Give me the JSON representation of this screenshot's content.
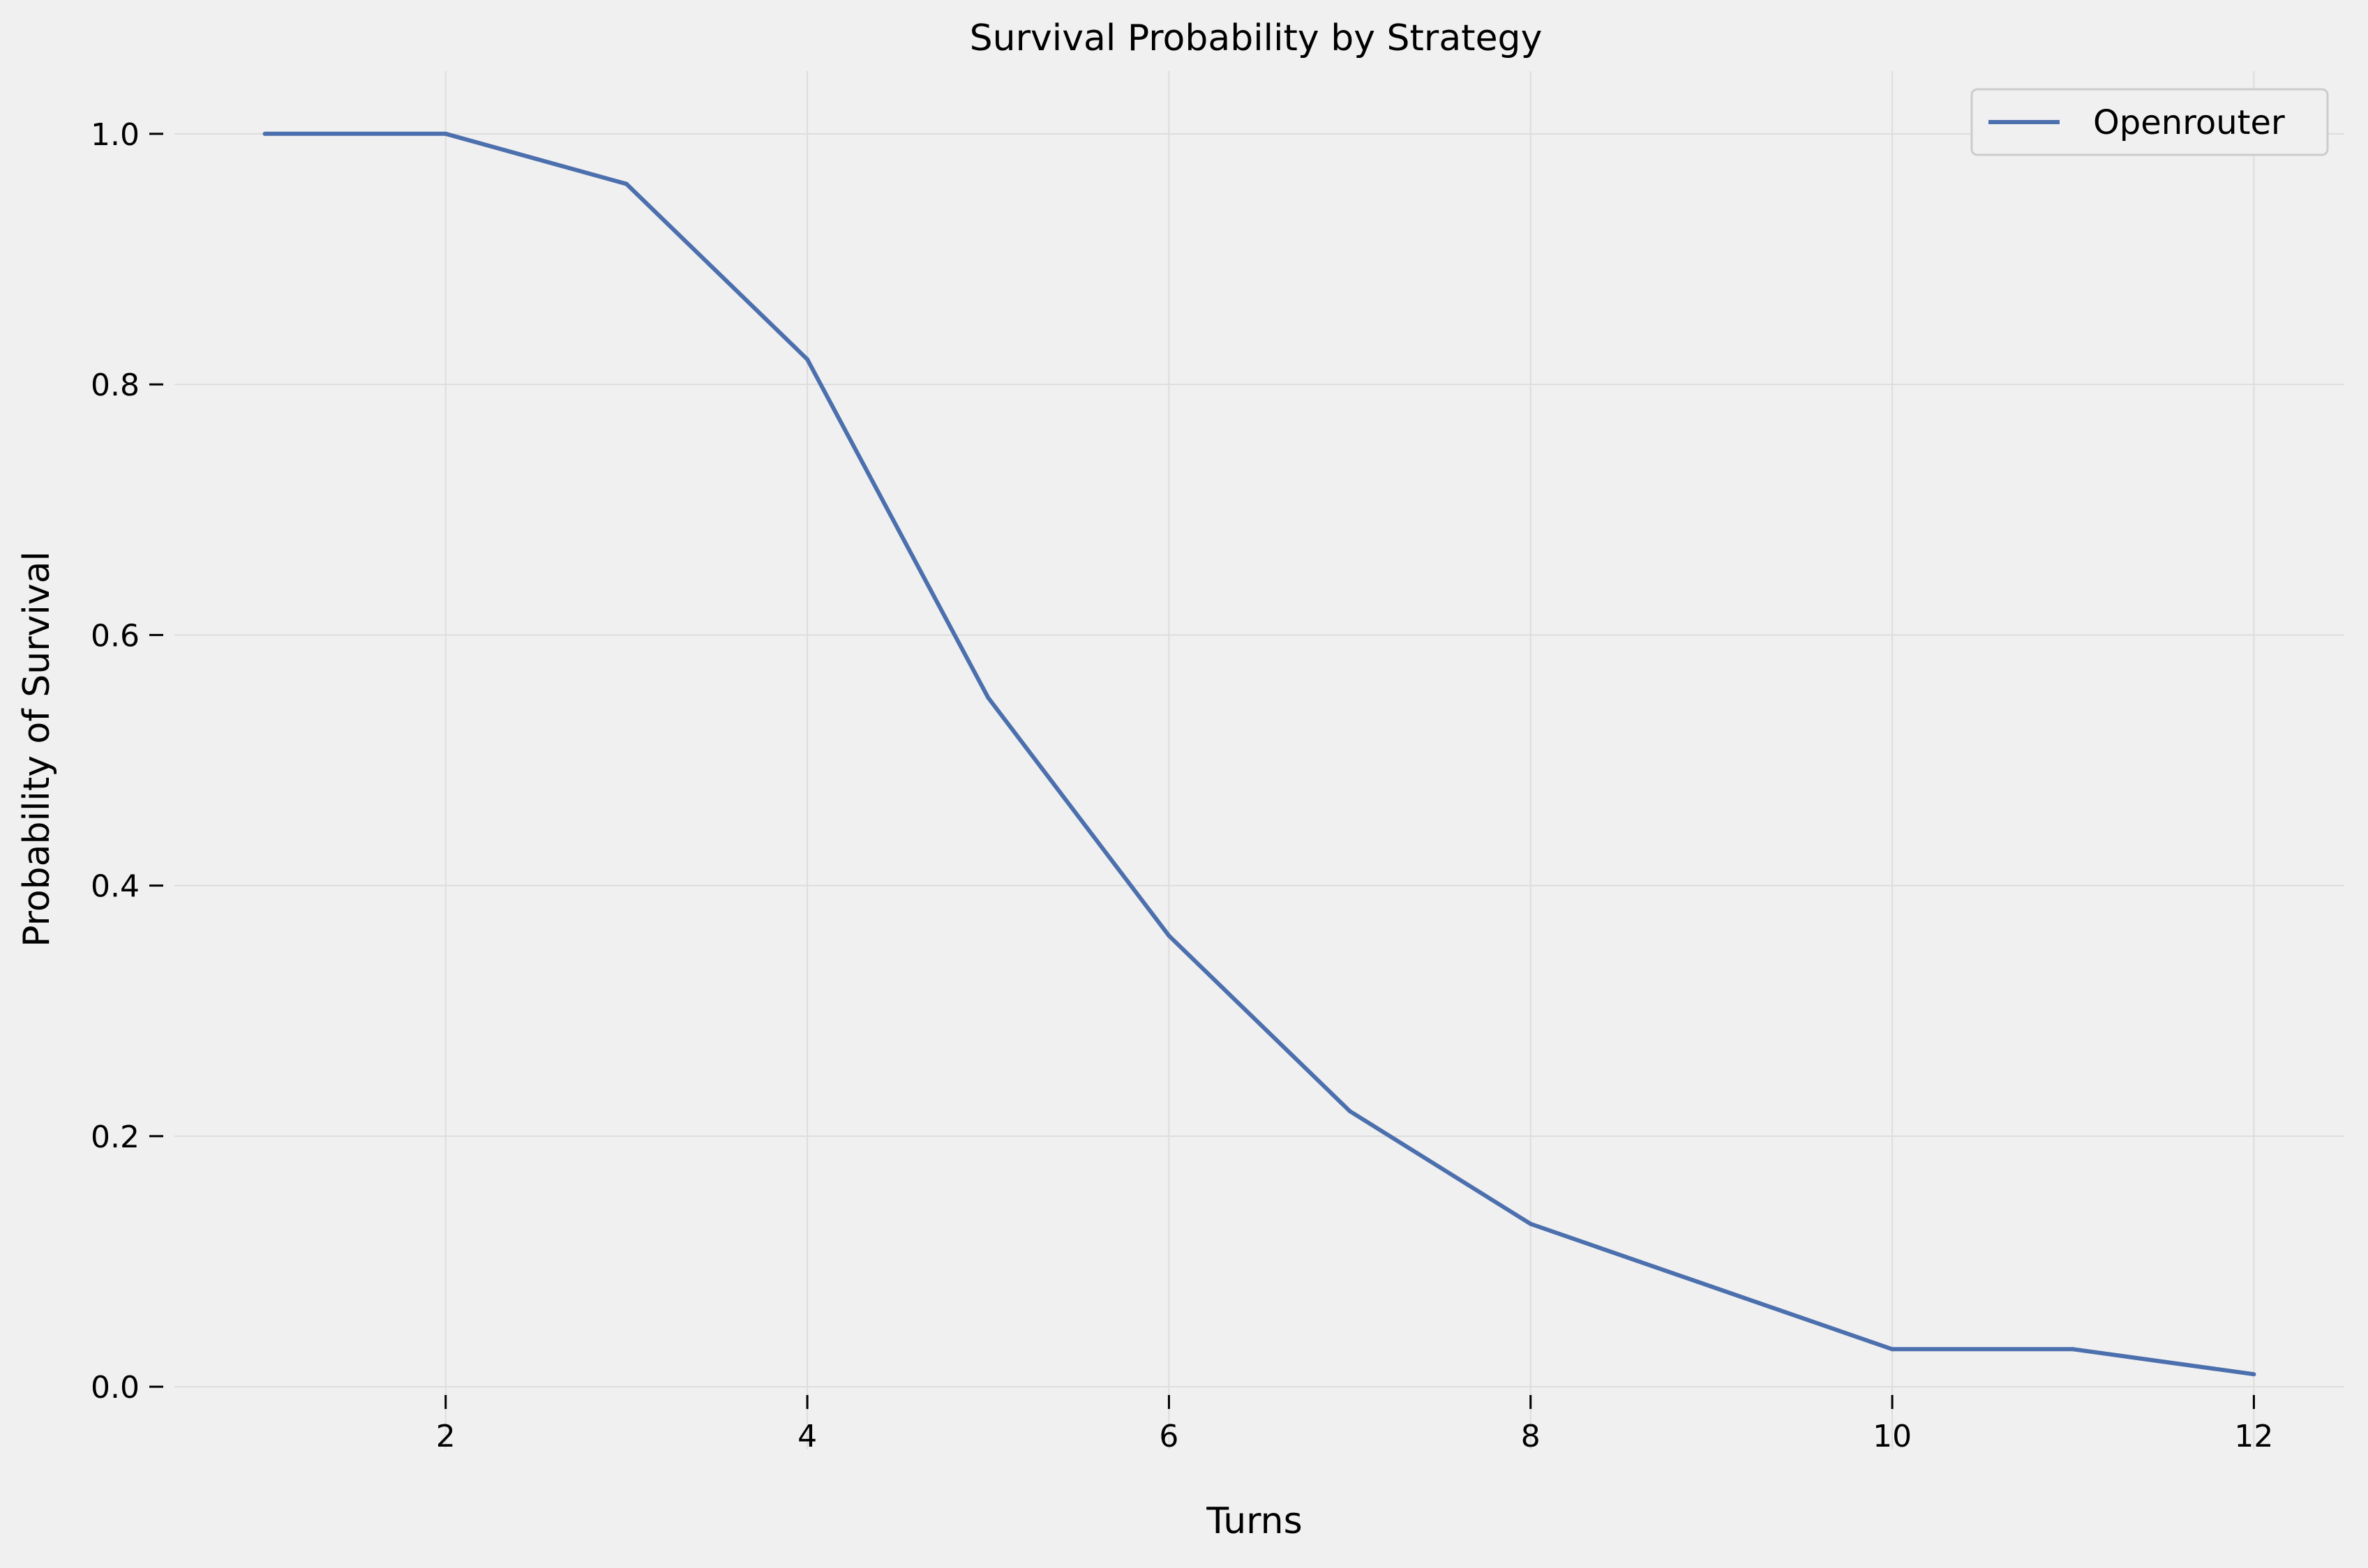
{
  "chart_data": {
    "type": "line",
    "title": "Survival Probability by Strategy",
    "xlabel": "Turns",
    "ylabel": "Probability of Survival",
    "xlim": [
      0.5,
      12.5
    ],
    "ylim": [
      -0.05,
      1.05
    ],
    "xticks": [
      2,
      4,
      6,
      8,
      10,
      12
    ],
    "yticks": [
      0.0,
      0.2,
      0.4,
      0.6,
      0.8,
      1.0
    ],
    "xtick_labels": [
      "2",
      "4",
      "6",
      "8",
      "10",
      "12"
    ],
    "ytick_labels": [
      "0.0",
      "0.2",
      "0.4",
      "0.6",
      "0.8",
      "1.0"
    ],
    "grid": true,
    "legend_position": "top-right",
    "series": [
      {
        "name": "Openrouter",
        "color": "#4c6fad",
        "x": [
          1,
          2,
          3,
          4,
          5,
          6,
          7,
          8,
          9,
          10,
          11,
          12
        ],
        "y": [
          1.0,
          1.0,
          0.96,
          0.82,
          0.55,
          0.36,
          0.22,
          0.13,
          0.08,
          0.03,
          0.03,
          0.01
        ]
      }
    ]
  },
  "colors": {
    "background": "#f0f0f0",
    "grid": "#dddddd",
    "text": "#000000"
  }
}
